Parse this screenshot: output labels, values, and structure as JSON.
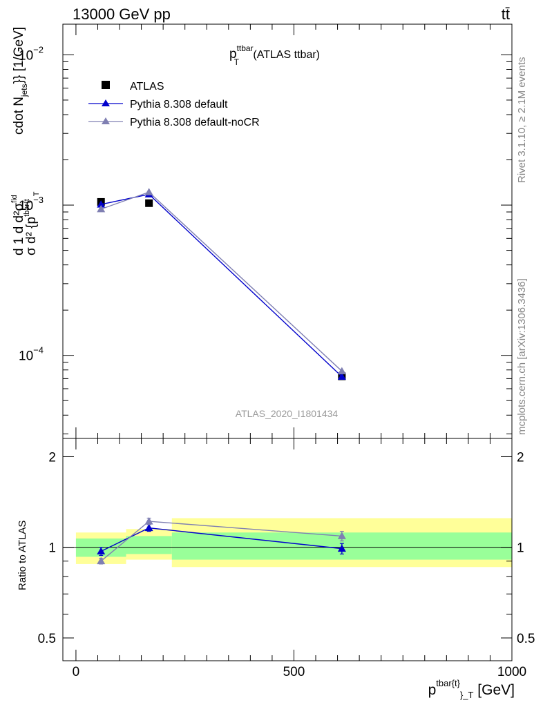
{
  "header": {
    "energy_label": "13000 GeV pp",
    "process_label": "tt̄",
    "side_label": "Rivet 3.1.10, ≥ 2.1M events",
    "site_label": "mcplots.cern.ch [arXiv:1306.3436]",
    "analysis_label": "ATLAS_2020_I1801434"
  },
  "chart_data": [
    {
      "type": "line",
      "title_main": "p",
      "title_sup": "ttbar",
      "title_sub": "T",
      "title_rest": " (ATLAS ttbar)",
      "ylabel": "d¹d²σᶦⁿᵈ / σ d²{pᵗᵇᵃʳ⁽ᵗ⁾}_T cdot N_jets}} [1/GeV]",
      "ylabel_parts": {
        "frac_top": "d 1 d  d²σ",
        "frac_sup": "fid",
        "frac_bottom": "σ  d² {p",
        "frac_bottom_sup": "tbar{t",
        "frac_bottom_sub": "T",
        "rest": "cdot N",
        "rest_sub": "jets",
        "rest_tail": "}} [1/GeV]"
      },
      "yscale": "log",
      "ylim": [
        2.8e-05,
        0.016
      ],
      "xlim": [
        -30,
        1000
      ],
      "y_ticks": [
        {
          "value": 0.0001,
          "base": "10",
          "exp": "−4"
        },
        {
          "value": 0.001,
          "base": "10",
          "exp": "−3"
        },
        {
          "value": 0.01,
          "base": "10",
          "exp": "−2"
        }
      ],
      "legend_position": "top-left",
      "series": [
        {
          "name": "ATLAS",
          "marker": "square",
          "color": "#000000",
          "x": [
            57.5,
            167.5,
            610
          ],
          "y": [
            0.00105,
            0.00103,
            7.25e-05
          ]
        },
        {
          "name": "Pythia 8.308 default",
          "marker": "triangle",
          "color": "#0000cc",
          "x": [
            57.5,
            167.5,
            610
          ],
          "y": [
            0.00101,
            0.00118,
            7.22e-05
          ]
        },
        {
          "name": "Pythia 8.308 default-noCR",
          "marker": "triangle",
          "color": "#7f7fb2",
          "x": [
            57.5,
            167.5,
            610
          ],
          "y": [
            0.00094,
            0.00122,
            7.85e-05
          ]
        }
      ]
    },
    {
      "type": "line",
      "ylabel": "Ratio to ATLAS",
      "xlabel_main": "p",
      "xlabel_sup": "tbar{t}",
      "xlabel_sub": "}_T",
      "xlabel_rest": " [GeV]",
      "yscale": "log",
      "ylim": [
        0.42,
        2.3
      ],
      "xlim": [
        -30,
        1000
      ],
      "y_ticks": [
        {
          "value": 0.5,
          "label": "0.5"
        },
        {
          "value": 1,
          "label": "1"
        },
        {
          "value": 2,
          "label": "2"
        }
      ],
      "x_ticks": [
        {
          "value": 0,
          "label": "0"
        },
        {
          "value": 500,
          "label": "500"
        },
        {
          "value": 1000,
          "label": "1000"
        }
      ],
      "bands": [
        {
          "x0": 0,
          "x1": 115,
          "yellow": [
            0.88,
            1.12
          ],
          "green": [
            0.93,
            1.07
          ]
        },
        {
          "x0": 115,
          "x1": 220,
          "yellow": [
            0.91,
            1.15
          ],
          "green": [
            0.95,
            1.09
          ]
        },
        {
          "x0": 220,
          "x1": 1000,
          "yellow": [
            0.86,
            1.25
          ],
          "green": [
            0.91,
            1.12
          ]
        }
      ],
      "series": [
        {
          "name": "Pythia 8.308 default",
          "color": "#0000cc",
          "x": [
            57.5,
            167.5,
            610
          ],
          "y": [
            0.97,
            1.16,
            0.99
          ],
          "err": [
            0.03,
            0.03,
            0.04
          ]
        },
        {
          "name": "Pythia 8.308 default-noCR",
          "color": "#7f7fb2",
          "x": [
            57.5,
            167.5,
            610
          ],
          "y": [
            0.9,
            1.22,
            1.09
          ],
          "err": [
            0.02,
            0.03,
            0.04
          ]
        }
      ]
    }
  ]
}
